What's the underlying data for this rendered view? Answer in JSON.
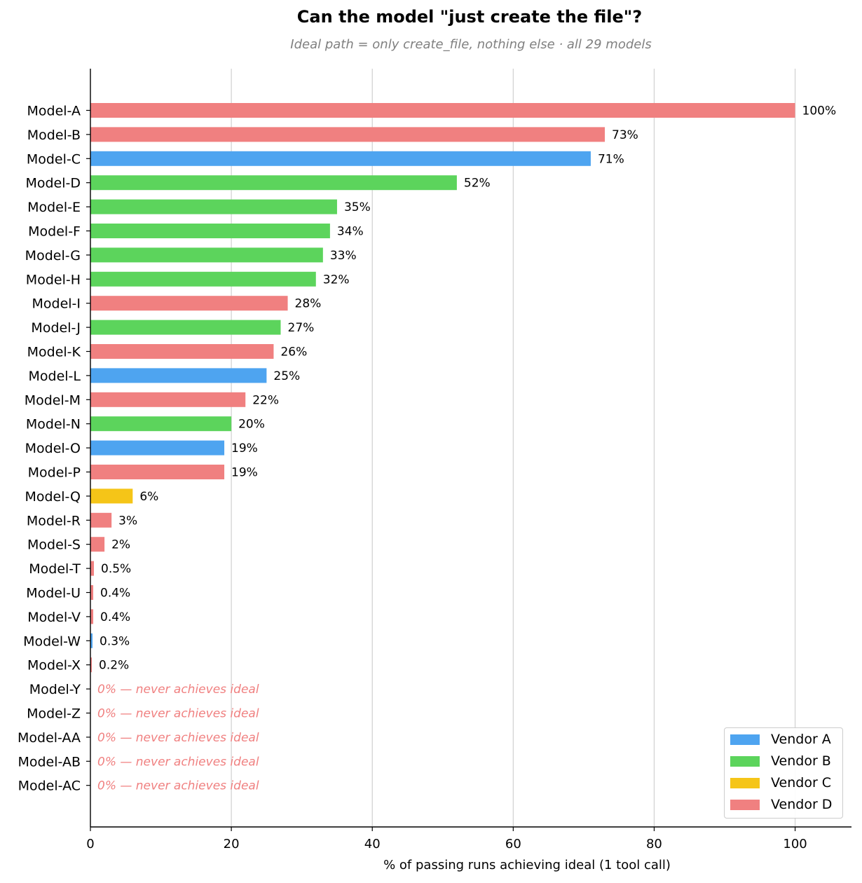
{
  "chart_data": {
    "type": "bar",
    "orientation": "horizontal",
    "title": "Can the model \"just create the file\"?",
    "subtitle": "Ideal path = only create_file, nothing else · all 29 models",
    "xlabel": "% of passing runs achieving ideal (1 tool call)",
    "ylabel": "",
    "xlim": [
      0,
      108
    ],
    "xticks": [
      0,
      20,
      40,
      60,
      80,
      100
    ],
    "grid": "vertical",
    "legend_position": "bottom-right",
    "zero_label": "0% — never achieves ideal",
    "vendors": [
      {
        "name": "Vendor A",
        "color": "#4ea4f0"
      },
      {
        "name": "Vendor B",
        "color": "#5cd45c"
      },
      {
        "name": "Vendor C",
        "color": "#f5c518"
      },
      {
        "name": "Vendor D",
        "color": "#f08080"
      }
    ],
    "bars": [
      {
        "category": "Model-A",
        "value": 100,
        "label": "100%",
        "vendor": "Vendor D"
      },
      {
        "category": "Model-B",
        "value": 73,
        "label": "73%",
        "vendor": "Vendor D"
      },
      {
        "category": "Model-C",
        "value": 71,
        "label": "71%",
        "vendor": "Vendor A"
      },
      {
        "category": "Model-D",
        "value": 52,
        "label": "52%",
        "vendor": "Vendor B"
      },
      {
        "category": "Model-E",
        "value": 35,
        "label": "35%",
        "vendor": "Vendor B"
      },
      {
        "category": "Model-F",
        "value": 34,
        "label": "34%",
        "vendor": "Vendor B"
      },
      {
        "category": "Model-G",
        "value": 33,
        "label": "33%",
        "vendor": "Vendor B"
      },
      {
        "category": "Model-H",
        "value": 32,
        "label": "32%",
        "vendor": "Vendor B"
      },
      {
        "category": "Model-I",
        "value": 28,
        "label": "28%",
        "vendor": "Vendor D"
      },
      {
        "category": "Model-J",
        "value": 27,
        "label": "27%",
        "vendor": "Vendor B"
      },
      {
        "category": "Model-K",
        "value": 26,
        "label": "26%",
        "vendor": "Vendor D"
      },
      {
        "category": "Model-L",
        "value": 25,
        "label": "25%",
        "vendor": "Vendor A"
      },
      {
        "category": "Model-M",
        "value": 22,
        "label": "22%",
        "vendor": "Vendor D"
      },
      {
        "category": "Model-N",
        "value": 20,
        "label": "20%",
        "vendor": "Vendor B"
      },
      {
        "category": "Model-O",
        "value": 19,
        "label": "19%",
        "vendor": "Vendor A"
      },
      {
        "category": "Model-P",
        "value": 19,
        "label": "19%",
        "vendor": "Vendor D"
      },
      {
        "category": "Model-Q",
        "value": 6,
        "label": "6%",
        "vendor": "Vendor C"
      },
      {
        "category": "Model-R",
        "value": 3,
        "label": "3%",
        "vendor": "Vendor D"
      },
      {
        "category": "Model-S",
        "value": 2,
        "label": "2%",
        "vendor": "Vendor D"
      },
      {
        "category": "Model-T",
        "value": 0.5,
        "label": "0.5%",
        "vendor": "Vendor D"
      },
      {
        "category": "Model-U",
        "value": 0.4,
        "label": "0.4%",
        "vendor": "Vendor D"
      },
      {
        "category": "Model-V",
        "value": 0.4,
        "label": "0.4%",
        "vendor": "Vendor D"
      },
      {
        "category": "Model-W",
        "value": 0.3,
        "label": "0.3%",
        "vendor": "Vendor A"
      },
      {
        "category": "Model-X",
        "value": 0.2,
        "label": "0.2%",
        "vendor": "Vendor D"
      },
      {
        "category": "Model-Y",
        "value": 0,
        "label": "0% — never achieves ideal",
        "vendor": "Vendor D"
      },
      {
        "category": "Model-Z",
        "value": 0,
        "label": "0% — never achieves ideal",
        "vendor": "Vendor D"
      },
      {
        "category": "Model-AA",
        "value": 0,
        "label": "0% — never achieves ideal",
        "vendor": "Vendor D"
      },
      {
        "category": "Model-AB",
        "value": 0,
        "label": "0% — never achieves ideal",
        "vendor": "Vendor D"
      },
      {
        "category": "Model-AC",
        "value": 0,
        "label": "0% — never achieves ideal",
        "vendor": "Vendor D"
      }
    ]
  }
}
